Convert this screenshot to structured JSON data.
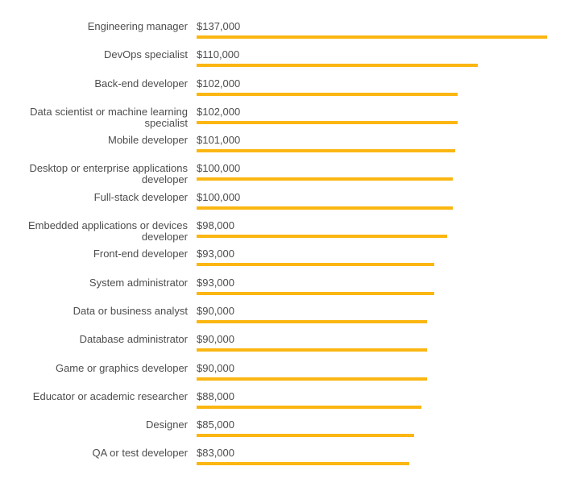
{
  "chart_data": {
    "type": "bar",
    "orientation": "horizontal",
    "title": "",
    "xlabel": "",
    "ylabel": "",
    "grid": false,
    "legend": false,
    "xlim": [
      0,
      137000
    ],
    "bar_color": "#fbb612",
    "label_color": "#4d4d4f",
    "categories": [
      "Engineering manager",
      "DevOps specialist",
      "Back-end developer",
      "Data scientist or machine learning specialist",
      "Mobile developer",
      "Desktop or enterprise applications developer",
      "Full-stack developer",
      "Embedded applications or devices developer",
      "Front-end developer",
      "System administrator",
      "Data or business analyst",
      "Database administrator",
      "Game or graphics developer",
      "Educator or academic researcher",
      "Designer",
      "QA or test developer"
    ],
    "values": [
      137000,
      110000,
      102000,
      102000,
      101000,
      100000,
      100000,
      98000,
      93000,
      93000,
      90000,
      90000,
      90000,
      88000,
      85000,
      83000
    ],
    "value_labels": [
      "$137,000",
      "$110,000",
      "$102,000",
      "$102,000",
      "$101,000",
      "$100,000",
      "$100,000",
      "$98,000",
      "$93,000",
      "$93,000",
      "$90,000",
      "$90,000",
      "$90,000",
      "$88,000",
      "$85,000",
      "$83,000"
    ]
  }
}
